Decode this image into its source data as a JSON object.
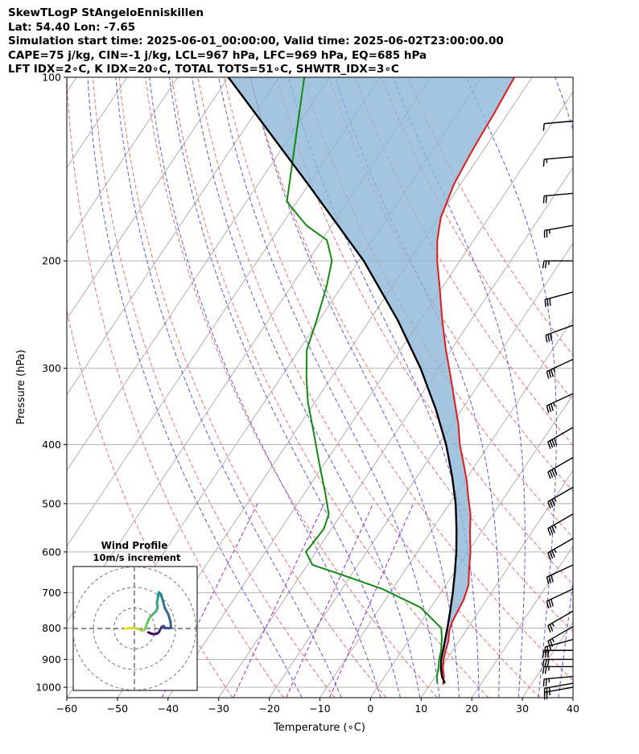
{
  "header": {
    "line1": "SkewTLogP StAngeloEnniskillen",
    "line2": "Lat: 54.40   Lon: -7.65",
    "line3": "Simulation start time: 2025-06-01_00:00:00, Valid time: 2025-06-02T23:00:00.00",
    "line4": "CAPE=75 j/kg, CIN=-1 j/kg, LCL=967 hPa, LFC=969 hPa, EQ=685 hPa",
    "line5": "LFT IDX=2∘C, K IDX=20∘C, TOTAL TOTS=51∘C, SHWTR_IDX=3∘C"
  },
  "chart_data": {
    "type": "line",
    "subtype": "skew-t log-p",
    "xlabel": "Temperature (∘C)",
    "ylabel": "Pressure (hPa)",
    "xlim": [
      -60,
      40
    ],
    "ylim": [
      1040,
      100
    ],
    "xticks": [
      -60,
      -50,
      -40,
      -30,
      -20,
      -10,
      0,
      10,
      20,
      30,
      40
    ],
    "xtick_labels": [
      "−60",
      "−50",
      "−40",
      "−30",
      "−20",
      "−10",
      "0",
      "10",
      "20",
      "30",
      "40"
    ],
    "yticks": [
      1000,
      900,
      800,
      700,
      600,
      500,
      400,
      300,
      200,
      100
    ],
    "grid": true,
    "colors": {
      "temperature": "#e31a1c",
      "dewpoint": "#138a13",
      "parcel": "#000000",
      "cape_fill": "#8cb7d7",
      "dry_adiabat": "#f07070",
      "moist_adiabat": "#5858ee",
      "mixing_ratio": "#9a2ed6",
      "isotherm": "#aaaaaa"
    },
    "series": [
      {
        "name": "Temperature",
        "points": [
          [
            12.6,
            990
          ],
          [
            11.7,
            960
          ],
          [
            10.4,
            930
          ],
          [
            9.4,
            900
          ],
          [
            8.6,
            870
          ],
          [
            7.9,
            840
          ],
          [
            6.8,
            810
          ],
          [
            6.1,
            780
          ],
          [
            5.8,
            750
          ],
          [
            5.5,
            720
          ],
          [
            4.5,
            680
          ],
          [
            2.5,
            640
          ],
          [
            0.5,
            600
          ],
          [
            -2,
            560
          ],
          [
            -4.5,
            520
          ],
          [
            -7,
            490
          ],
          [
            -9.5,
            460
          ],
          [
            -12.5,
            430
          ],
          [
            -15.8,
            400
          ],
          [
            -18.8,
            370
          ],
          [
            -22.5,
            340
          ],
          [
            -26.5,
            310
          ],
          [
            -31,
            280
          ],
          [
            -35.7,
            250
          ],
          [
            -40.7,
            220
          ],
          [
            -44.5,
            200
          ],
          [
            -47.2,
            185
          ],
          [
            -49.5,
            170
          ],
          [
            -51.3,
            150
          ],
          [
            -52,
            135
          ],
          [
            -52.4,
            125
          ],
          [
            -52.7,
            115
          ],
          [
            -53.5,
            100
          ]
        ]
      },
      {
        "name": "Dewpoint",
        "points": [
          [
            11.3,
            985
          ],
          [
            10.3,
            960
          ],
          [
            9.5,
            930
          ],
          [
            8.5,
            900
          ],
          [
            7.7,
            870
          ],
          [
            6.2,
            830
          ],
          [
            4.8,
            800
          ],
          [
            -2,
            740
          ],
          [
            -12,
            690
          ],
          [
            -23,
            650
          ],
          [
            -29,
            630
          ],
          [
            -32,
            600
          ],
          [
            -31.5,
            550
          ],
          [
            -32.5,
            520
          ],
          [
            -36,
            480
          ],
          [
            -41,
            430
          ],
          [
            -46.5,
            380
          ],
          [
            -51.5,
            340
          ],
          [
            -55,
            310
          ],
          [
            -58.5,
            280
          ],
          [
            -60.5,
            250
          ],
          [
            -63,
            220
          ],
          [
            -65.3,
            200
          ],
          [
            -69,
            185
          ],
          [
            -75,
            175
          ],
          [
            -82,
            160
          ],
          [
            -95,
            100
          ]
        ]
      },
      {
        "name": "Parcel",
        "points": [
          [
            12.8,
            985
          ],
          [
            11.3,
            960
          ],
          [
            10,
            930
          ],
          [
            8.9,
            900
          ],
          [
            7.5,
            850
          ],
          [
            6,
            800
          ],
          [
            4.3,
            750
          ],
          [
            2.4,
            700
          ],
          [
            0.2,
            650
          ],
          [
            -2.3,
            600
          ],
          [
            -5.3,
            550
          ],
          [
            -8.8,
            500
          ],
          [
            -13.2,
            450
          ],
          [
            -18.5,
            400
          ],
          [
            -25.2,
            350
          ],
          [
            -33.6,
            300
          ],
          [
            -44.5,
            250
          ],
          [
            -59,
            200
          ],
          [
            -80,
            150
          ],
          [
            -110,
            100
          ]
        ]
      }
    ],
    "cape_region": {
      "from_hpa": 969,
      "to_hpa": 685,
      "fill_upper_to_hpa": 100
    },
    "dry_adiabats_theta_c": [
      -30,
      -20,
      -10,
      0,
      10,
      20,
      30,
      40,
      50,
      60,
      70,
      80,
      90,
      100,
      110
    ],
    "moist_adiabats_theta_c": [
      -16,
      -8,
      0,
      4,
      8,
      12,
      16,
      20,
      24,
      28,
      32,
      36,
      40
    ],
    "mixing_ratio_lines_gkg": [
      0.1,
      0.4,
      1,
      2
    ],
    "wind_barbs": {
      "units": "kt",
      "levels": [
        {
          "p": 1000,
          "speed": 25,
          "dir": 260
        },
        {
          "p": 985,
          "speed": 25,
          "dir": 260
        },
        {
          "p": 960,
          "speed": 25,
          "dir": 265
        },
        {
          "p": 925,
          "speed": 25,
          "dir": 270
        },
        {
          "p": 900,
          "speed": 30,
          "dir": 270
        },
        {
          "p": 870,
          "speed": 30,
          "dir": 270
        },
        {
          "p": 835,
          "speed": 25,
          "dir": 255
        },
        {
          "p": 795,
          "speed": 25,
          "dir": 240
        },
        {
          "p": 750,
          "speed": 25,
          "dir": 240
        },
        {
          "p": 690,
          "speed": 30,
          "dir": 245
        },
        {
          "p": 630,
          "speed": 30,
          "dir": 245
        },
        {
          "p": 570,
          "speed": 35,
          "dir": 240
        },
        {
          "p": 520,
          "speed": 35,
          "dir": 240
        },
        {
          "p": 470,
          "speed": 35,
          "dir": 240
        },
        {
          "p": 420,
          "speed": 40,
          "dir": 240
        },
        {
          "p": 375,
          "speed": 40,
          "dir": 240
        },
        {
          "p": 330,
          "speed": 35,
          "dir": 245
        },
        {
          "p": 290,
          "speed": 35,
          "dir": 245
        },
        {
          "p": 255,
          "speed": 30,
          "dir": 250
        },
        {
          "p": 225,
          "speed": 30,
          "dir": 255
        },
        {
          "p": 200,
          "speed": 25,
          "dir": 270
        },
        {
          "p": 175,
          "speed": 25,
          "dir": 260
        },
        {
          "p": 155,
          "speed": 20,
          "dir": 265
        },
        {
          "p": 135,
          "speed": 15,
          "dir": 265
        },
        {
          "p": 118,
          "speed": 10,
          "dir": 265
        }
      ]
    },
    "hodograph": {
      "title": "Wind Profile",
      "subtitle": "10m/s increment",
      "ring_step_ms": 10,
      "rings": 3,
      "points_ms": [
        [
          -4.5,
          -0.2
        ],
        [
          -3,
          0.2
        ],
        [
          -1,
          0.3
        ],
        [
          1,
          0
        ],
        [
          2.5,
          -0.4
        ],
        [
          3.5,
          -0.9
        ],
        [
          4.8,
          -0.8
        ],
        [
          5.5,
          0.5
        ],
        [
          6.2,
          2.5
        ],
        [
          7,
          4.5
        ],
        [
          8,
          6
        ],
        [
          9.3,
          7.2
        ],
        [
          10.6,
          8.5
        ],
        [
          11.3,
          10.1
        ],
        [
          11,
          12.5
        ],
        [
          11.4,
          14.8
        ],
        [
          11.6,
          16.6
        ],
        [
          12,
          17.6
        ],
        [
          13,
          16.5
        ],
        [
          14,
          13
        ],
        [
          14.8,
          10
        ],
        [
          16.5,
          7
        ],
        [
          17.6,
          3.2
        ],
        [
          17.8,
          0.5
        ],
        [
          16.8,
          0.1
        ],
        [
          15,
          0.3
        ],
        [
          14.2,
          1.2
        ],
        [
          13.2,
          0.6
        ],
        [
          12.6,
          -0.4
        ],
        [
          12.1,
          -1.6
        ],
        [
          11.2,
          -2.4
        ],
        [
          9.5,
          -2.8
        ],
        [
          8.2,
          -2.5
        ],
        [
          6.8,
          -1.9
        ]
      ]
    }
  }
}
